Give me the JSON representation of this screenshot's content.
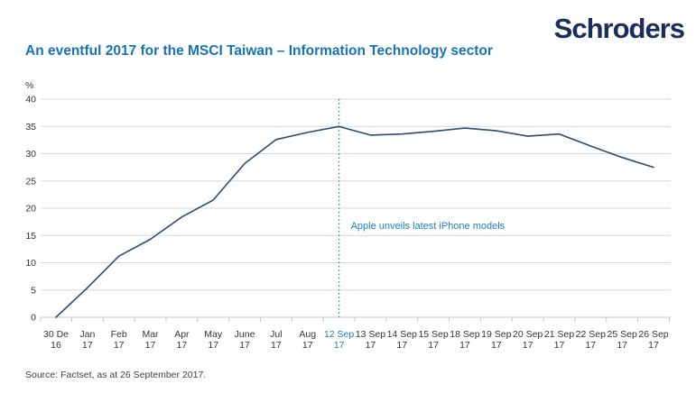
{
  "header": {
    "logo_text": "Schroders",
    "title": "An eventful 2017 for the MSCI Taiwan – Information Technology sector"
  },
  "chart_data": {
    "type": "line",
    "title": "An eventful 2017 for the MSCI Taiwan – Information Technology sector",
    "unit_label": "%",
    "ylim": [
      0,
      40
    ],
    "ytick_step": 5,
    "yticks": [
      0,
      5,
      10,
      15,
      20,
      25,
      30,
      35,
      40
    ],
    "grid": true,
    "legend": "none",
    "categories": [
      [
        "30 De",
        "16"
      ],
      [
        "Jan",
        "17"
      ],
      [
        "Feb",
        "17"
      ],
      [
        "Mar",
        "17"
      ],
      [
        "Apr",
        "17"
      ],
      [
        "May",
        "17"
      ],
      [
        "June",
        "17"
      ],
      [
        "Jul",
        "17"
      ],
      [
        "Aug",
        "17"
      ],
      [
        "12 Sep",
        "17"
      ],
      [
        "13 Sep",
        "17"
      ],
      [
        "14 Sep",
        "17"
      ],
      [
        "15 Sep",
        "17"
      ],
      [
        "18 Sep",
        "17"
      ],
      [
        "19 Sep",
        "17"
      ],
      [
        "20 Sep",
        "17"
      ],
      [
        "21 Sep",
        "17"
      ],
      [
        "22 Sep",
        "17"
      ],
      [
        "25 Sep",
        "17"
      ],
      [
        "26 Sep",
        "17"
      ]
    ],
    "values": [
      0,
      5.4,
      11.2,
      14.3,
      18.4,
      21.5,
      28.2,
      32.6,
      33.9,
      35.0,
      33.4,
      33.6,
      34.1,
      34.7,
      34.2,
      33.2,
      33.6,
      31.4,
      29.3,
      27.5
    ],
    "highlight_index": 9,
    "highlight_category": "12 Sep 17",
    "event_line": {
      "at_category": "12 Sep 17",
      "style": "dotted-vertical"
    },
    "annotation": {
      "text": "Apple unveils latest iPhone models"
    }
  },
  "footer": {
    "source": "Source: Factset, as at 26 September 2017."
  },
  "colors": {
    "logo_navy": "#1b2d5b",
    "title_blue": "#1673b8",
    "series_navy": "#2c4b77",
    "highlight_blue": "#1e7ec3",
    "gridline_gray": "#d9d9d9",
    "axis_gray": "#c6c6c6",
    "tick_text": "#333333",
    "source_text": "#404040",
    "background": "#ffffff"
  }
}
